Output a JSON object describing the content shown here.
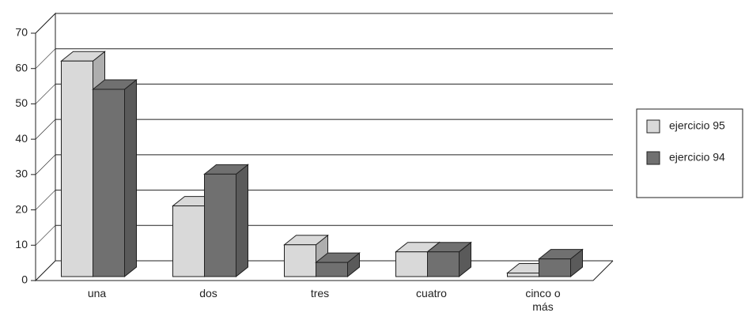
{
  "chart_data": {
    "type": "bar3d",
    "categories": [
      "una",
      "dos",
      "tres",
      "cuatro",
      "cinco o más"
    ],
    "series": [
      {
        "name": "ejercicio 95",
        "color": "#d9d9d9",
        "values": [
          61,
          20,
          9,
          7,
          1
        ]
      },
      {
        "name": "ejercicio 94",
        "color": "#707070",
        "values": [
          53,
          29,
          4,
          7,
          5
        ]
      }
    ],
    "ylim": [
      0,
      70
    ],
    "yticks": [
      0,
      10,
      20,
      30,
      40,
      50,
      60,
      70
    ],
    "grid": true,
    "legend": "right"
  }
}
